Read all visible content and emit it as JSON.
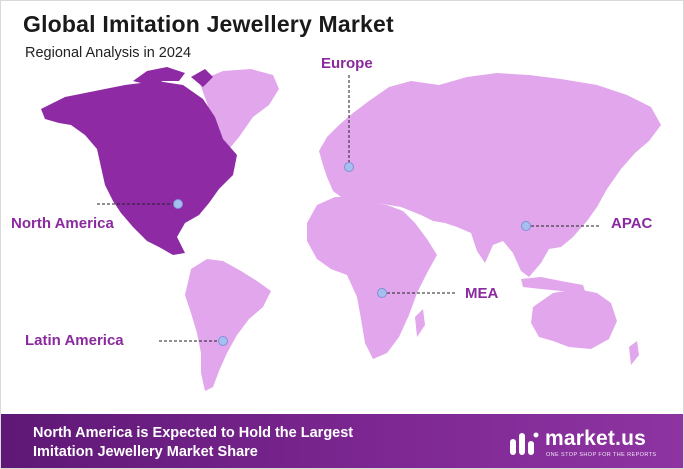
{
  "header": {
    "title": "Global Imitation Jewellery Market",
    "subtitle": "Regional Analysis in 2024"
  },
  "regions": [
    {
      "key": "europe",
      "label": "Europe"
    },
    {
      "key": "north_america",
      "label": "North America"
    },
    {
      "key": "apac",
      "label": "APAC"
    },
    {
      "key": "mea",
      "label": "MEA"
    },
    {
      "key": "latin_america",
      "label": "Latin America"
    }
  ],
  "highlighted_region": "North America",
  "colors": {
    "highlight": "#8e2aa3",
    "land": "#e1a6eb",
    "marker": "#a5bff0",
    "label": "#8a2a9e",
    "footer": "#6a1d80"
  },
  "footer": {
    "line1": "North America is Expected to Hold the Largest",
    "line2": "Imitation Jewellery Market Share"
  },
  "logo": {
    "icon": "market-us-logo-icon",
    "name": "market.us",
    "tagline": "ONE STOP SHOP FOR THE REPORTS"
  }
}
